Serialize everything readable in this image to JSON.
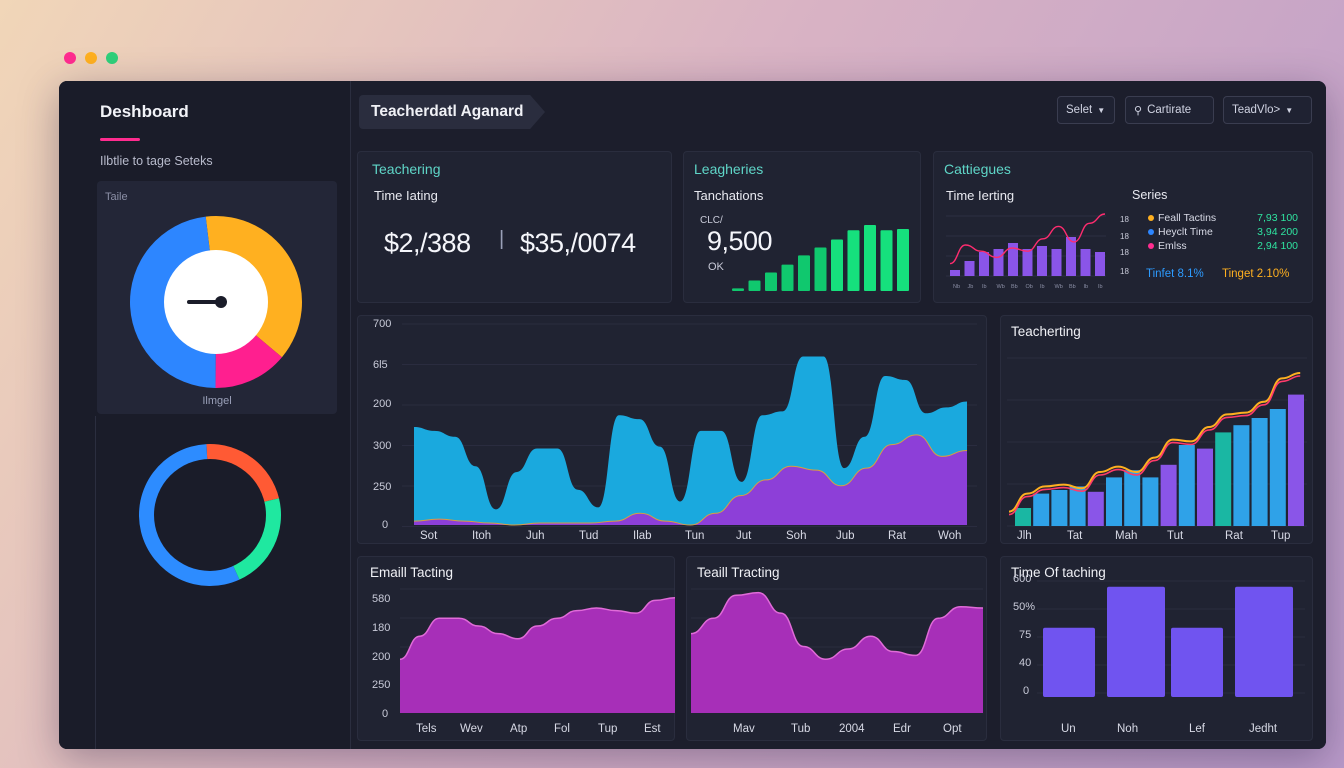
{
  "window_controls": {
    "colors": [
      "#ff2c8f",
      "#ffb020",
      "#2fd07a"
    ]
  },
  "sidebar": {
    "title": "Deshboard",
    "subtitle": "Ilbtlie to tage Seteks",
    "gauge_card": {
      "label": "Taile",
      "footer": "Ilmgel"
    },
    "gauge_segments": [
      {
        "color": "#ffb020",
        "value": 38
      },
      {
        "color": "#ff1f8f",
        "value": 14
      },
      {
        "color": "#2d86ff",
        "value": 48
      }
    ],
    "ring_segments": [
      {
        "color": "#ff5a34",
        "value": 22
      },
      {
        "color": "#1fe8a0",
        "value": 22
      },
      {
        "color": "#2d8cff",
        "value": 56
      }
    ]
  },
  "header": {
    "title": "Teacherdatl Aganard",
    "buttons": [
      {
        "label": "Selet",
        "icon": "chevron-down-icon"
      },
      {
        "label": "Cartirate",
        "icon": "link-icon"
      },
      {
        "label": "TeadVlo>",
        "icon": "chevron-down-icon"
      }
    ]
  },
  "kpi_cards": {
    "card1": {
      "heading": "Teachering",
      "subheading": "Time Iating",
      "value_a": "$2,/388",
      "separator": "|",
      "value_b": "$35,/0074"
    },
    "card2": {
      "heading": "Leagheries",
      "subheading": "Tanchations",
      "small_top": "CLC/",
      "value": "9,500",
      "small_bottom": "OK",
      "bar_values": [
        2,
        8,
        14,
        20,
        27,
        33,
        39,
        46,
        50,
        46,
        47
      ]
    },
    "card3": {
      "heading": "Cattiegues",
      "subheading": "Time Ierting",
      "series_title": "Series",
      "y_labels": [
        "18",
        "18",
        "18",
        "18"
      ],
      "series": [
        {
          "name": "Feall Tactins",
          "value": "7,93 100",
          "color": "#ffb020"
        },
        {
          "name": "Heyclt Time",
          "value": "3,94 200",
          "color": "#2d86ff"
        },
        {
          "name": "Emlss",
          "value": "2,94 100",
          "color": "#ff2c8f"
        }
      ],
      "targets": [
        {
          "label": "Tinfet 8.1%",
          "color": "#2d9bff"
        },
        {
          "label": "Tinget 2.10%",
          "color": "#ffb020"
        }
      ],
      "bar_values": [
        2,
        5,
        8,
        9,
        11,
        9,
        10,
        9,
        13,
        9,
        8
      ],
      "line_values": [
        4,
        10,
        8,
        6,
        9,
        8,
        12,
        16,
        11,
        17,
        20
      ],
      "x_ticks": [
        "Nb",
        "Jb",
        "Ib",
        "Wb",
        "Bb",
        "Ob",
        "Ib",
        "Wb",
        "Bb",
        "Ib",
        "Ib"
      ]
    }
  },
  "area_chart_main": {
    "y_labels": [
      "700",
      "6l5",
      "200",
      "300",
      "250",
      "0"
    ],
    "x_labels": [
      "Sot",
      "Itoh",
      "Juh",
      "Tud",
      "Ilab",
      "Tun",
      "Jut",
      "Soh",
      "Jub",
      "Rat",
      "Woh"
    ],
    "cyan": [
      0.5,
      0.48,
      0.45,
      0.3,
      0.08,
      0.27,
      0.39,
      0.39,
      0.18,
      0.09,
      0.56,
      0.54,
      0.4,
      0.12,
      0.48,
      0.48,
      0.22,
      0.56,
      0.58,
      0.86,
      0.86,
      0.29,
      0.45,
      0.76,
      0.74,
      0.57,
      0.6,
      0.63
    ],
    "purple": [
      0.02,
      0.03,
      0.02,
      0.01,
      0.0,
      0.01,
      0.01,
      0.01,
      0.02,
      0.06,
      0.02,
      0.0,
      0.06,
      0.15,
      0.23,
      0.3,
      0.28,
      0.2,
      0.29,
      0.41,
      0.46,
      0.35,
      0.38
    ]
  },
  "teacherting_chart": {
    "title": "Teacherting",
    "x_labels": [
      "Jlh",
      "Tat",
      "Mah",
      "Tut",
      "Rat",
      "Tup"
    ],
    "bar_values": [
      0.1,
      0.18,
      0.2,
      0.22,
      0.19,
      0.27,
      0.31,
      0.27,
      0.34,
      0.45,
      0.43,
      0.52,
      0.56,
      0.6,
      0.65,
      0.73
    ],
    "bar_colors": [
      "#1ab7a3",
      "#2fa2e8",
      "#2fa2e8",
      "#2fa2e8",
      "#8a55e8",
      "#2fa2e8",
      "#2fa2e8",
      "#2fa2e8",
      "#8a55e8",
      "#2fa2e8",
      "#8a55e8",
      "#1ab7a3",
      "#2fa2e8",
      "#2fa2e8",
      "#2fa2e8",
      "#8a55e8"
    ],
    "line_values": [
      0.08,
      0.18,
      0.22,
      0.23,
      0.21,
      0.3,
      0.33,
      0.3,
      0.38,
      0.48,
      0.47,
      0.55,
      0.62,
      0.63,
      0.69,
      0.82,
      0.85
    ]
  },
  "email_chart": {
    "title": "Emaill Tacting",
    "y_labels": [
      "580",
      "180",
      "200",
      "250",
      "0"
    ],
    "x_labels": [
      "Tels",
      "Wev",
      "Atp",
      "Fol",
      "Tup",
      "Est"
    ],
    "values": [
      0.42,
      0.6,
      0.74,
      0.74,
      0.68,
      0.62,
      0.58,
      0.68,
      0.74,
      0.8,
      0.82,
      0.8,
      0.78,
      0.88,
      0.9
    ]
  },
  "teaill_chart": {
    "title": "Teaill Tracting",
    "x_labels": [
      "Mav",
      "Tub",
      "2004",
      "Edr",
      "Opt"
    ],
    "values": [
      0.62,
      0.74,
      0.92,
      0.94,
      0.78,
      0.52,
      0.42,
      0.5,
      0.6,
      0.48,
      0.45,
      0.74,
      0.83,
      0.82
    ]
  },
  "time_chart": {
    "title": "Time Of taching",
    "y_labels": [
      "600",
      "50%",
      "75",
      "40",
      "0"
    ],
    "x_labels": [
      "Un",
      "Noh",
      "Lef",
      "Jedht"
    ],
    "bar_values": [
      0.66,
      1.05,
      0.66,
      1.05
    ]
  }
}
